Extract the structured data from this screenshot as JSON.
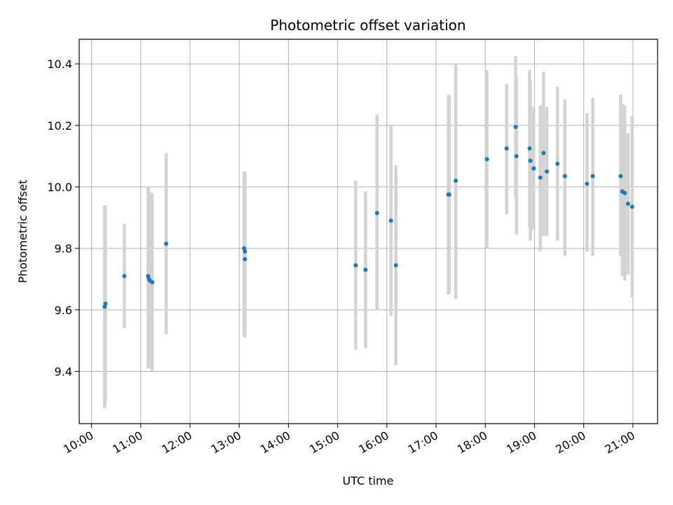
{
  "chart_data": {
    "type": "scatter",
    "title": "Photometric offset variation",
    "xlabel": "UTC time",
    "ylabel": "Photometric offset",
    "x_axis": {
      "range": [
        "09:45",
        "21:30"
      ],
      "ticks": [
        "10:00",
        "11:00",
        "12:00",
        "13:00",
        "14:00",
        "15:00",
        "16:00",
        "17:00",
        "18:00",
        "19:00",
        "20:00",
        "21:00"
      ]
    },
    "y_axis": {
      "range": [
        9.23,
        10.48
      ],
      "ticks": [
        "9.4",
        "9.6",
        "9.8",
        "10.0",
        "10.2",
        "10.4"
      ]
    },
    "grid": true,
    "colors": {
      "points": "#1f77b4",
      "errorbars": "#d3d3d3",
      "grid": "#b0b0b0"
    },
    "series": [
      {
        "points": [
          {
            "t": "10:16",
            "y": 9.61,
            "lo": 9.28,
            "hi": 9.94
          },
          {
            "t": "10:17",
            "y": 9.62,
            "lo": 9.3,
            "hi": 9.94
          },
          {
            "t": "10:40",
            "y": 9.71,
            "lo": 9.54,
            "hi": 9.88
          },
          {
            "t": "11:09",
            "y": 9.71,
            "lo": 9.41,
            "hi": 10.0
          },
          {
            "t": "11:10",
            "y": 9.7,
            "lo": 9.41,
            "hi": 9.99
          },
          {
            "t": "11:11",
            "y": 9.695,
            "lo": 9.42,
            "hi": 9.98
          },
          {
            "t": "11:14",
            "y": 9.69,
            "lo": 9.4,
            "hi": 9.98
          },
          {
            "t": "11:31",
            "y": 9.815,
            "lo": 9.52,
            "hi": 10.11
          },
          {
            "t": "13:06",
            "y": 9.8,
            "lo": 9.52,
            "hi": 10.05
          },
          {
            "t": "13:07",
            "y": 9.79,
            "lo": 9.53,
            "hi": 10.05
          },
          {
            "t": "13:07",
            "y": 9.765,
            "lo": 9.51,
            "hi": 10.04
          },
          {
            "t": "15:22",
            "y": 9.745,
            "lo": 9.47,
            "hi": 10.02
          },
          {
            "t": "15:34",
            "y": 9.73,
            "lo": 9.475,
            "hi": 9.985
          },
          {
            "t": "15:48",
            "y": 9.915,
            "lo": 9.6,
            "hi": 10.235
          },
          {
            "t": "16:05",
            "y": 9.89,
            "lo": 9.58,
            "hi": 10.2
          },
          {
            "t": "16:11",
            "y": 9.745,
            "lo": 9.42,
            "hi": 10.07
          },
          {
            "t": "17:15",
            "y": 9.975,
            "lo": 9.65,
            "hi": 10.3
          },
          {
            "t": "17:16",
            "y": 9.975,
            "lo": 9.655,
            "hi": 10.295
          },
          {
            "t": "17:24",
            "y": 10.02,
            "lo": 9.635,
            "hi": 10.4
          },
          {
            "t": "18:02",
            "y": 10.09,
            "lo": 9.8,
            "hi": 10.38
          },
          {
            "t": "18:26",
            "y": 10.125,
            "lo": 9.91,
            "hi": 10.335
          },
          {
            "t": "18:37",
            "y": 10.195,
            "lo": 9.965,
            "hi": 10.425
          },
          {
            "t": "18:38",
            "y": 10.1,
            "lo": 9.845,
            "hi": 10.355
          },
          {
            "t": "18:54",
            "y": 10.125,
            "lo": 9.87,
            "hi": 10.38
          },
          {
            "t": "18:55",
            "y": 10.085,
            "lo": 9.825,
            "hi": 10.345
          },
          {
            "t": "18:59",
            "y": 10.06,
            "lo": 9.86,
            "hi": 10.26
          },
          {
            "t": "19:07",
            "y": 10.03,
            "lo": 9.79,
            "hi": 10.265
          },
          {
            "t": "19:11",
            "y": 10.11,
            "lo": 9.84,
            "hi": 10.375
          },
          {
            "t": "19:15",
            "y": 10.05,
            "lo": 9.84,
            "hi": 10.26
          },
          {
            "t": "19:28",
            "y": 10.075,
            "lo": 9.825,
            "hi": 10.325
          },
          {
            "t": "19:37",
            "y": 10.035,
            "lo": 9.775,
            "hi": 10.285
          },
          {
            "t": "20:04",
            "y": 10.01,
            "lo": 9.79,
            "hi": 10.24
          },
          {
            "t": "20:11",
            "y": 10.035,
            "lo": 9.775,
            "hi": 10.29
          },
          {
            "t": "20:45",
            "y": 10.035,
            "lo": 9.775,
            "hi": 10.3
          },
          {
            "t": "20:47",
            "y": 9.985,
            "lo": 9.71,
            "hi": 10.27
          },
          {
            "t": "20:50",
            "y": 9.98,
            "lo": 9.695,
            "hi": 10.265
          },
          {
            "t": "20:54",
            "y": 9.945,
            "lo": 9.715,
            "hi": 10.175
          },
          {
            "t": "20:59",
            "y": 9.935,
            "lo": 9.64,
            "hi": 10.23
          }
        ]
      }
    ]
  }
}
